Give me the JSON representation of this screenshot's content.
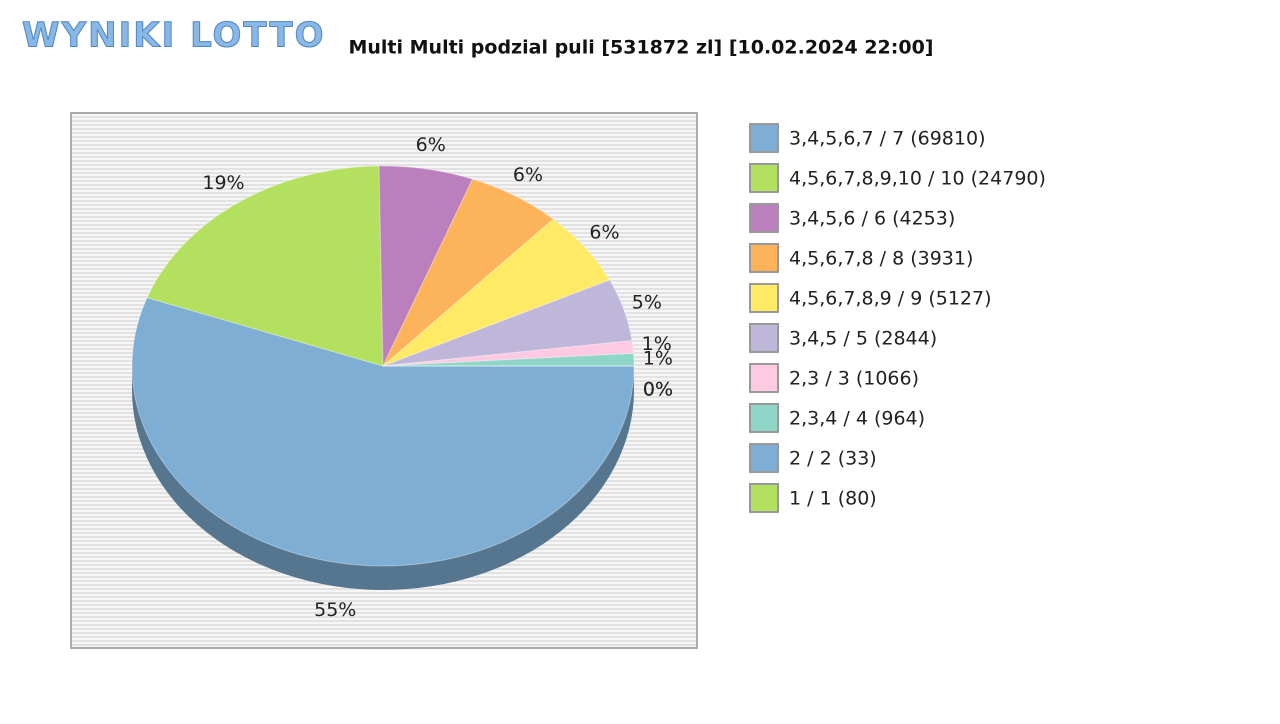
{
  "logo": "WYNIKI LOTTO",
  "chart_data": {
    "type": "pie",
    "title": "Multi Multi podzial puli [531872 zl] [10.02.2024 22:00]",
    "categories": [
      "3,4,5,6,7 / 7 (69810)",
      "4,5,6,7,8,9,10 / 10 (24790)",
      "3,4,5,6 / 6 (4253)",
      "4,5,6,7,8 / 8 (3931)",
      "4,5,6,7,8,9 / 9 (5127)",
      "3,4,5 / 5 (2844)",
      "2,3 / 3 (1066)",
      "2,3,4 / 4 (964)",
      "2 / 2 (33)",
      "1 / 1 (80)"
    ],
    "values": [
      55,
      19,
      6,
      6,
      6,
      5,
      1,
      1,
      0,
      0
    ],
    "value_labels": [
      "55%",
      "19%",
      "6%",
      "6%",
      "6%",
      "5%",
      "1%",
      "1%",
      "0%",
      "0%"
    ],
    "colors": [
      "#7eaed4",
      "#b3e05f",
      "#bb7fbd",
      "#fdb35a",
      "#feea64",
      "#bfb7da",
      "#fdcae2",
      "#8fd6c8",
      "#7eaed4",
      "#b3e05f"
    ]
  }
}
